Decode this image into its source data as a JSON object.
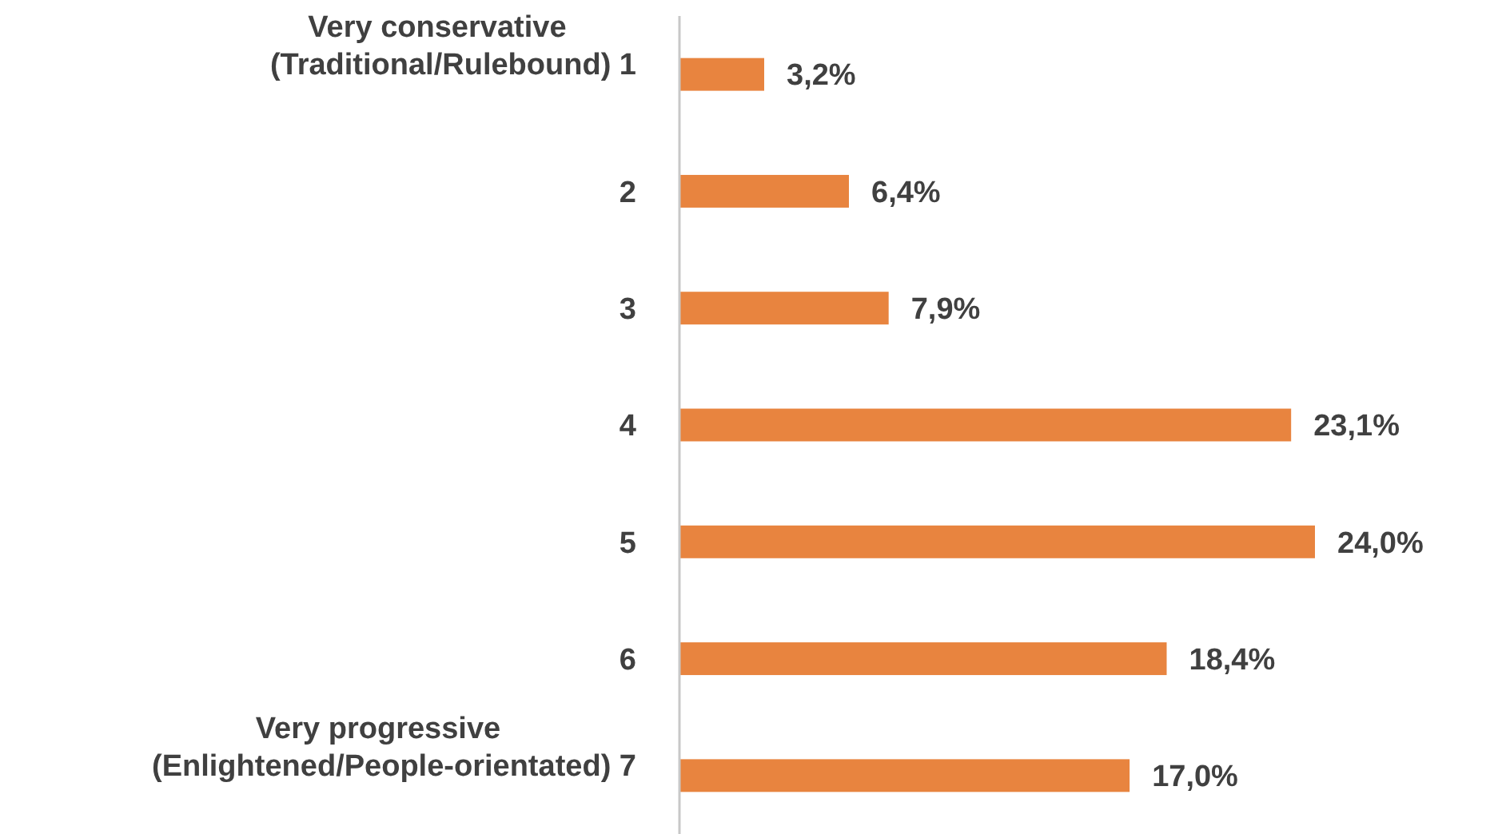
{
  "chart_data": {
    "type": "bar",
    "orientation": "horizontal",
    "categories": [
      "Very conservative\n(Traditional/Rulebound)  1",
      "2",
      "3",
      "4",
      "5",
      "6",
      "Very progressive\n(Enlightened/People-orientated)  7"
    ],
    "values": [
      3.2,
      6.4,
      7.9,
      23.1,
      24.0,
      18.4,
      17.0
    ],
    "value_labels": [
      "3,2%",
      "6,4%",
      "7,9%",
      "23,1%",
      "24,0%",
      "18,4%",
      "17,0%"
    ],
    "color": "#e8843f"
  }
}
